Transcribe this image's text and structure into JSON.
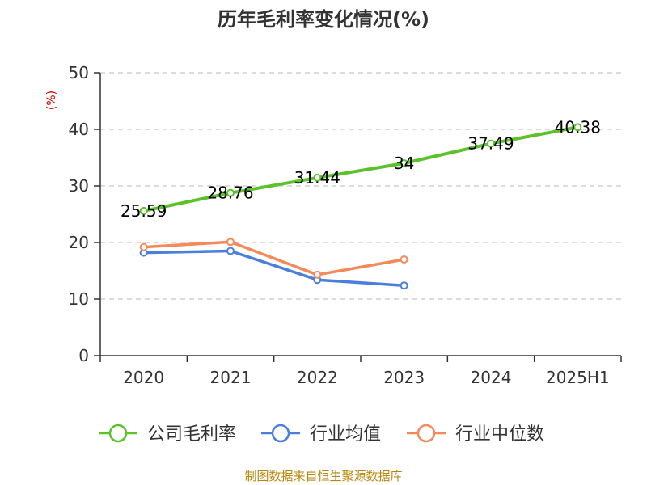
{
  "chart_data": {
    "type": "line",
    "title": "历年毛利率变化情况(%)",
    "ylabel": "(%)",
    "xlabel": "",
    "categories": [
      "2020",
      "2021",
      "2022",
      "2023",
      "2024",
      "2025H1"
    ],
    "ylim": [
      0,
      50
    ],
    "yticks": [
      0,
      10,
      20,
      30,
      40,
      50
    ],
    "grid": true,
    "legend_position": "bottom",
    "series": [
      {
        "name": "公司毛利率",
        "color": "#5cc22b",
        "values": [
          25.59,
          28.76,
          31.44,
          34,
          37.49,
          40.38
        ],
        "labels": [
          "25.59",
          "28.76",
          "31.44",
          "34",
          "37.49",
          "40.38"
        ]
      },
      {
        "name": "行业均值",
        "color": "#4a7fdc",
        "values": [
          18.2,
          18.5,
          13.4,
          12.4,
          null,
          null
        ]
      },
      {
        "name": "行业中位数",
        "color": "#f5895a",
        "values": [
          19.2,
          20.1,
          14.3,
          17.0,
          null,
          null
        ]
      }
    ]
  },
  "source": "制图数据来自恒生聚源数据库"
}
